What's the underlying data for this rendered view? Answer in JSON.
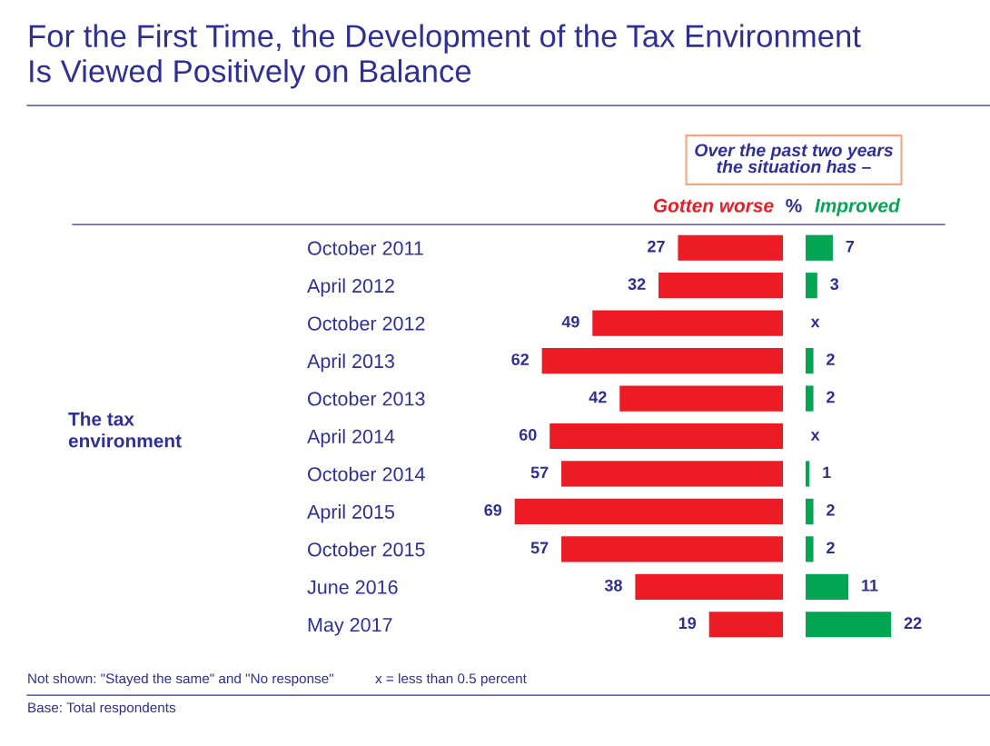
{
  "chart_data": [
    {
      "type": "bar",
      "orientation": "horizontal",
      "title": "For the First Time, the Development of the Tax Environment\nIs Viewed Positively on Balance",
      "categories": [
        "October 2011",
        "April 2012",
        "October 2012",
        "April 2013",
        "October 2013",
        "April 2014",
        "October 2014",
        "April 2015",
        "October 2015",
        "June 2016",
        "May 2017"
      ],
      "series": [
        {
          "name": "Gotten worse",
          "color": "#ed1c24",
          "values": [
            27,
            32,
            49,
            62,
            42,
            60,
            57,
            69,
            57,
            38,
            19
          ]
        }
      ],
      "tick_labels": "y",
      "data_labels": true,
      "legend": false,
      "grid": false,
      "annotations": [
        "Over the past two years\nthe situation has –",
        "%",
        "The tax\nenvironment",
        "Not shown: \"Stayed the same\" and \"No response\"",
        "x = less than 0.5 percent",
        "Base: Total respondents"
      ]
    },
    {
      "type": "bar",
      "orientation": "horizontal",
      "series": [
        {
          "name": "Improved",
          "color": "#00a651",
          "values": [
            7,
            3,
            null,
            2,
            2,
            null,
            1,
            2,
            2,
            11,
            22
          ],
          "value_labels": [
            "7",
            "3",
            "x",
            "2",
            "2",
            "x",
            "1",
            "2",
            "2",
            "11",
            "22"
          ]
        }
      ],
      "tick_labels": false,
      "legend": false,
      "grid": false
    }
  ]
}
